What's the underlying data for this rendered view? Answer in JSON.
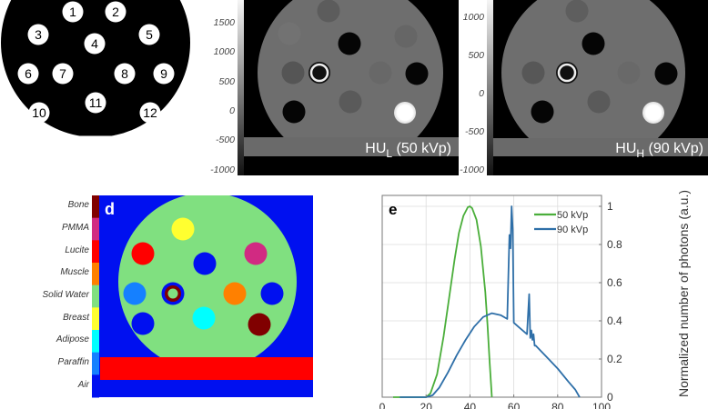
{
  "panel_a": {
    "insert_labels": [
      "1",
      "2",
      "3",
      "4",
      "5",
      "6",
      "7",
      "8",
      "9",
      "10",
      "11",
      "12"
    ]
  },
  "panel_b": {
    "label_main": "HU",
    "label_sub": "L",
    "label_suffix": " (50 kVp)",
    "colorbar_ticks": [
      "1500",
      "1000",
      "500",
      "0",
      "-500",
      "-1000"
    ]
  },
  "panel_c": {
    "label_main": "HU",
    "label_sub": "H",
    "label_suffix": " (90 kVp)",
    "colorbar_ticks": [
      "1000",
      "500",
      "0",
      "-500",
      "-1000"
    ]
  },
  "panel_d": {
    "panel_letter": "d",
    "materials": [
      {
        "name": "Bone",
        "color": "#800000"
      },
      {
        "name": "PMMA",
        "color": "#d12a82"
      },
      {
        "name": "Lucite",
        "color": "#ff0000"
      },
      {
        "name": "Muscle",
        "color": "#ff8000"
      },
      {
        "name": "Solid Water",
        "color": "#80e080"
      },
      {
        "name": "Breast",
        "color": "#ffff30"
      },
      {
        "name": "Adipose",
        "color": "#00ffff"
      },
      {
        "name": "Paraffin",
        "color": "#1580ff"
      },
      {
        "name": "Air",
        "color": "#0010f0"
      }
    ]
  },
  "chart_data": {
    "type": "line",
    "panel_letter": "e",
    "title": "",
    "xlabel": "",
    "ylabel": "Normalized number of photons (a.u.)",
    "xlim": [
      0,
      100
    ],
    "ylim": [
      0,
      1
    ],
    "xticks": [
      "0",
      "20",
      "40",
      "60",
      "80",
      "100"
    ],
    "yticks": [
      "0",
      "0.2",
      "0.4",
      "0.6",
      "0.8",
      "1"
    ],
    "grid": true,
    "legend_position": "upper right",
    "series": [
      {
        "name": "50 kVp",
        "color": "#4aae3a",
        "x": [
          5,
          20,
          22,
          25,
          28,
          30,
          33,
          35,
          37,
          39,
          40,
          41,
          43,
          45,
          47,
          48,
          49,
          50
        ],
        "y": [
          0,
          0,
          0.02,
          0.12,
          0.32,
          0.48,
          0.72,
          0.86,
          0.95,
          0.995,
          1.0,
          0.99,
          0.93,
          0.79,
          0.55,
          0.38,
          0.18,
          0
        ]
      },
      {
        "name": "90 kVp",
        "color": "#2e6fa8",
        "x": [
          8,
          20,
          23,
          26,
          30,
          34,
          38,
          42,
          46,
          50,
          54,
          57,
          58,
          58.5,
          59,
          59.5,
          60,
          62,
          66,
          67,
          67.5,
          68,
          68.5,
          69,
          69.5,
          70,
          75,
          80,
          85,
          88,
          90
        ],
        "y": [
          0,
          0,
          0.01,
          0.05,
          0.13,
          0.22,
          0.3,
          0.37,
          0.42,
          0.44,
          0.43,
          0.41,
          0.85,
          0.78,
          1.0,
          0.88,
          0.39,
          0.37,
          0.33,
          0.54,
          0.31,
          0.35,
          0.3,
          0.33,
          0.27,
          0.27,
          0.21,
          0.15,
          0.08,
          0.04,
          0
        ]
      }
    ]
  }
}
